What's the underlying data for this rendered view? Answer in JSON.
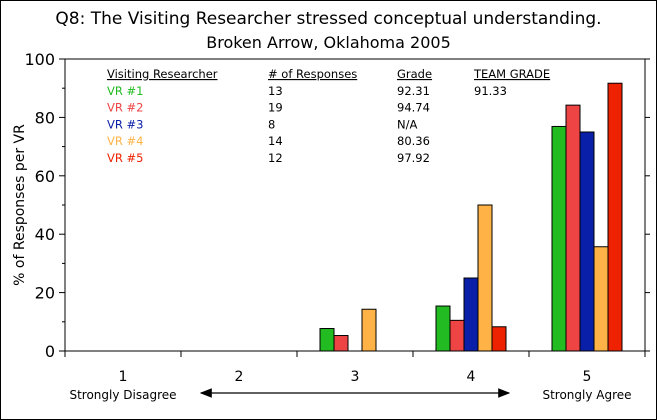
{
  "chart_data": {
    "type": "bar",
    "title": "Q8: The Visiting Researcher stressed conceptual understanding.",
    "subtitle": "Broken Arrow, Oklahoma 2005",
    "ylabel": "% of Responses per VR",
    "xlabel": "",
    "ylim": [
      0,
      100
    ],
    "yticks": [
      0,
      20,
      40,
      60,
      80,
      100
    ],
    "grid": false,
    "categories": [
      "1",
      "2",
      "3",
      "4",
      "5"
    ],
    "category_sublabels": {
      "1": "Strongly Disagree",
      "5": "Strongly Agree"
    },
    "series": [
      {
        "name": "VR #1",
        "color": "#22bb22",
        "values": [
          0,
          0,
          7.7,
          15.4,
          76.9
        ]
      },
      {
        "name": "VR #2",
        "color": "#ee4444",
        "values": [
          0,
          0,
          5.3,
          10.5,
          84.2
        ]
      },
      {
        "name": "VR #3",
        "color": "#0a1fa8",
        "values": [
          0,
          0,
          0,
          25.0,
          75.0
        ]
      },
      {
        "name": "VR #4",
        "color": "#ffb347",
        "values": [
          0,
          0,
          14.3,
          50.0,
          35.7
        ]
      },
      {
        "name": "VR #5",
        "color": "#ee2200",
        "values": [
          0,
          0,
          0,
          8.3,
          91.7
        ]
      }
    ],
    "table": {
      "headers": [
        "Visiting Researcher",
        "# of Responses",
        "Grade",
        "TEAM GRADE"
      ],
      "rows": [
        {
          "vr": "VR #1",
          "responses": "13",
          "grade": "92.31",
          "team": "91.33"
        },
        {
          "vr": "VR #2",
          "responses": "19",
          "grade": "94.74",
          "team": ""
        },
        {
          "vr": "VR #3",
          "responses": "8",
          "grade": "N/A",
          "team": ""
        },
        {
          "vr": "VR #4",
          "responses": "14",
          "grade": "80.36",
          "team": ""
        },
        {
          "vr": "VR #5",
          "responses": "12",
          "grade": "97.92",
          "team": ""
        }
      ]
    },
    "annotations": [
      "double-headed arrow between categories 2 and 4"
    ]
  }
}
